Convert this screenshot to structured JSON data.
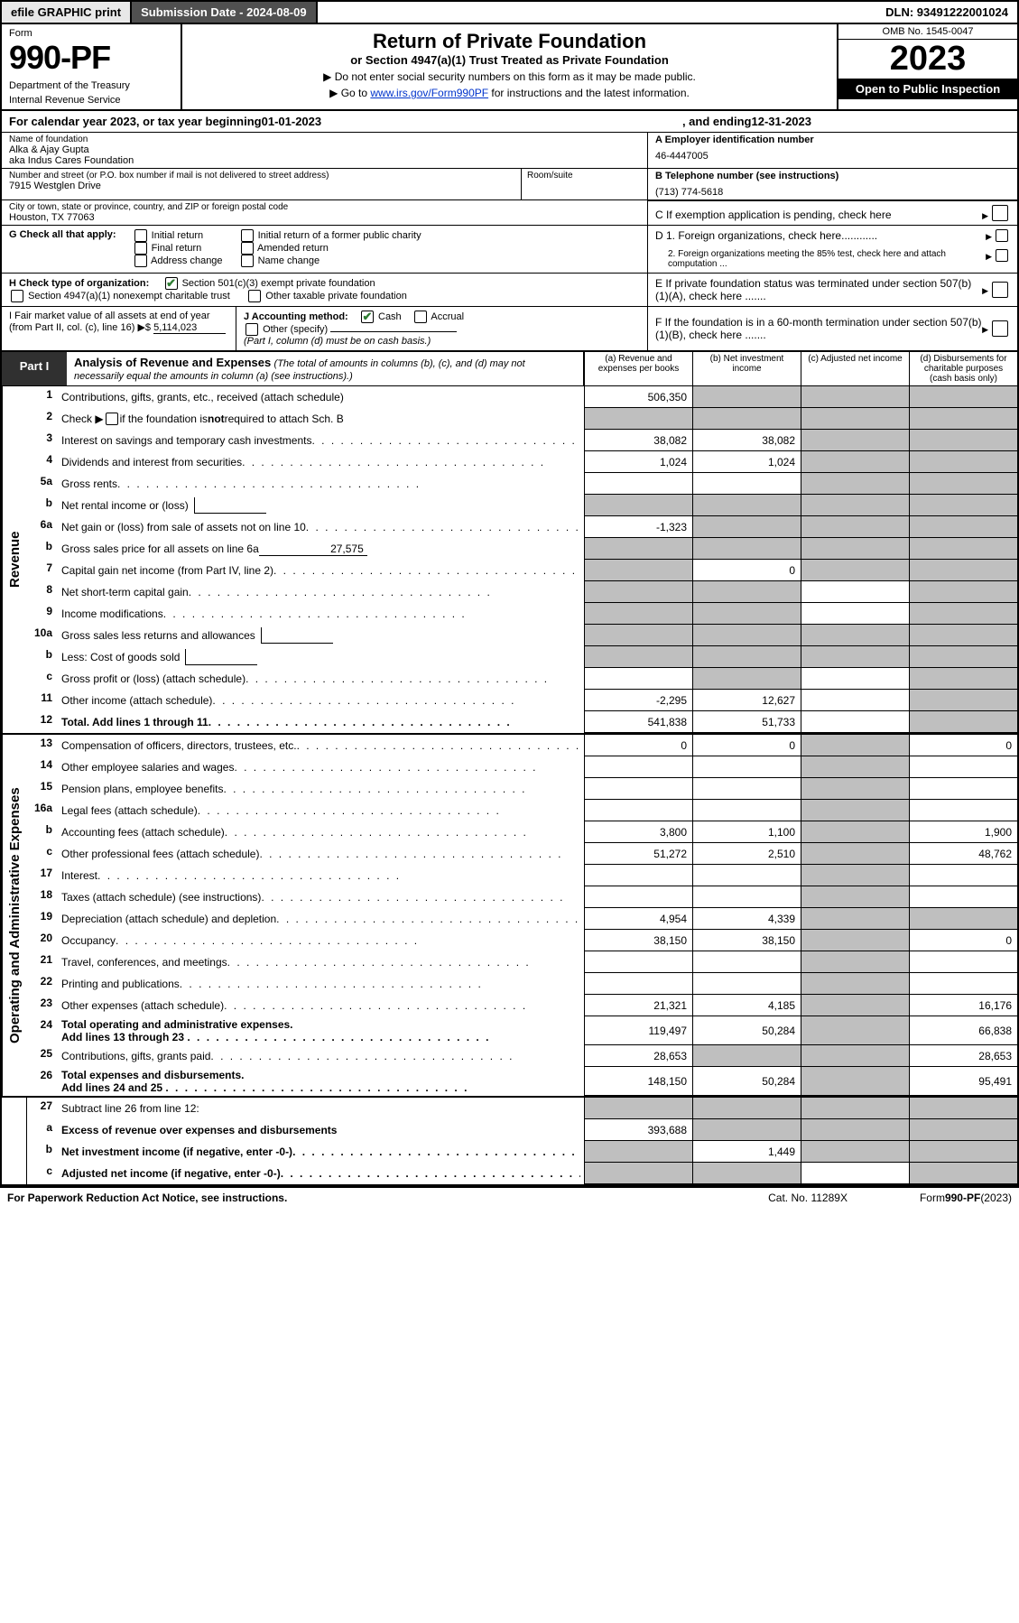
{
  "topbar": {
    "efile": "efile GRAPHIC print",
    "submission_label": "Submission Date - 2024-08-09",
    "dln": "DLN: 93491222001024"
  },
  "header": {
    "form_word": "Form",
    "form_number": "990-PF",
    "dept1": "Department of the Treasury",
    "dept2": "Internal Revenue Service",
    "title": "Return of Private Foundation",
    "subtitle": "or Section 4947(a)(1) Trust Treated as Private Foundation",
    "instr1": "▶ Do not enter social security numbers on this form as it may be made public.",
    "instr2_pre": "▶ Go to ",
    "instr2_link": "www.irs.gov/Form990PF",
    "instr2_post": " for instructions and the latest information.",
    "omb": "OMB No. 1545-0047",
    "year": "2023",
    "open": "Open to Public Inspection"
  },
  "calyear": {
    "pre": "For calendar year 2023, or tax year beginning ",
    "begin": "01-01-2023",
    "mid": ", and ending ",
    "end": "12-31-2023"
  },
  "name": {
    "label": "Name of foundation",
    "line1": "Alka & Ajay Gupta",
    "line2": "aka Indus Cares Foundation"
  },
  "ein": {
    "label": "A Employer identification number",
    "value": "46-4447005"
  },
  "addr": {
    "label": "Number and street (or P.O. box number if mail is not delivered to street address)",
    "value": "7915 Westglen Drive",
    "room_label": "Room/suite"
  },
  "phone": {
    "label": "B Telephone number (see instructions)",
    "value": "(713) 774-5618"
  },
  "city": {
    "label": "City or town, state or province, country, and ZIP or foreign postal code",
    "value": "Houston, TX  77063"
  },
  "C": "C If exemption application is pending, check here",
  "G": {
    "label": "G Check all that apply:",
    "o1": "Initial return",
    "o2": "Final return",
    "o3": "Address change",
    "o4": "Initial return of a former public charity",
    "o5": "Amended return",
    "o6": "Name change"
  },
  "D": {
    "d1": "D 1. Foreign organizations, check here............",
    "d2": "2. Foreign organizations meeting the 85% test, check here and attach computation ..."
  },
  "H": {
    "label": "H Check type of organization:",
    "o1": "Section 501(c)(3) exempt private foundation",
    "o2": "Section 4947(a)(1) nonexempt charitable trust",
    "o3": "Other taxable private foundation"
  },
  "E": "E  If private foundation status was terminated under section 507(b)(1)(A), check here .......",
  "I": {
    "label": "I Fair market value of all assets at end of year (from Part II, col. (c), line 16)",
    "value": "5,114,023",
    "arrow": "▶$"
  },
  "J": {
    "label": "J Accounting method:",
    "o1": "Cash",
    "o2": "Accrual",
    "o3": "Other (specify)",
    "note": "(Part I, column (d) must be on cash basis.)"
  },
  "F": "F  If the foundation is in a 60-month termination under section 507(b)(1)(B), check here .......",
  "part1": {
    "tab": "Part I",
    "title": "Analysis of Revenue and Expenses",
    "note": "(The total of amounts in columns (b), (c), and (d) may not necessarily equal the amounts in column (a) (see instructions).)",
    "ca": "(a)  Revenue and expenses per books",
    "cb": "(b)  Net investment income",
    "cc": "(c)  Adjusted net income",
    "cd": "(d)  Disbursements for charitable purposes (cash basis only)"
  },
  "side": {
    "rev": "Revenue",
    "exp": "Operating and Administrative Expenses"
  },
  "lines": {
    "l1": {
      "n": "1",
      "d": "Contributions, gifts, grants, etc., received (attach schedule)",
      "a": "506,350"
    },
    "l2": {
      "n": "2",
      "d_pre": "Check ▶ ",
      "d_post": " if the foundation is ",
      "d_bold": "not",
      "d_end": " required to attach Sch. B"
    },
    "l3": {
      "n": "3",
      "d": "Interest on savings and temporary cash investments",
      "a": "38,082",
      "b": "38,082"
    },
    "l4": {
      "n": "4",
      "d": "Dividends and interest from securities",
      "a": "1,024",
      "b": "1,024"
    },
    "l5a": {
      "n": "5a",
      "d": "Gross rents"
    },
    "l5b": {
      "n": "b",
      "d": "Net rental income or (loss)"
    },
    "l6a": {
      "n": "6a",
      "d": "Net gain or (loss) from sale of assets not on line 10",
      "a": "-1,323"
    },
    "l6b": {
      "n": "b",
      "d": "Gross sales price for all assets on line 6a",
      "inline": "27,575"
    },
    "l7": {
      "n": "7",
      "d": "Capital gain net income (from Part IV, line 2)",
      "b": "0"
    },
    "l8": {
      "n": "8",
      "d": "Net short-term capital gain"
    },
    "l9": {
      "n": "9",
      "d": "Income modifications"
    },
    "l10a": {
      "n": "10a",
      "d": "Gross sales less returns and allowances"
    },
    "l10b": {
      "n": "b",
      "d": "Less: Cost of goods sold"
    },
    "l10c": {
      "n": "c",
      "d": "Gross profit or (loss) (attach schedule)"
    },
    "l11": {
      "n": "11",
      "d": "Other income (attach schedule)",
      "a": "-2,295",
      "b": "12,627"
    },
    "l12": {
      "n": "12",
      "d": "Total. Add lines 1 through 11",
      "a": "541,838",
      "b": "51,733"
    },
    "l13": {
      "n": "13",
      "d": "Compensation of officers, directors, trustees, etc.",
      "a": "0",
      "b": "0",
      "dd": "0"
    },
    "l14": {
      "n": "14",
      "d": "Other employee salaries and wages"
    },
    "l15": {
      "n": "15",
      "d": "Pension plans, employee benefits"
    },
    "l16a": {
      "n": "16a",
      "d": "Legal fees (attach schedule)"
    },
    "l16b": {
      "n": "b",
      "d": "Accounting fees (attach schedule)",
      "a": "3,800",
      "b": "1,100",
      "dd": "1,900"
    },
    "l16c": {
      "n": "c",
      "d": "Other professional fees (attach schedule)",
      "a": "51,272",
      "b": "2,510",
      "dd": "48,762"
    },
    "l17": {
      "n": "17",
      "d": "Interest"
    },
    "l18": {
      "n": "18",
      "d": "Taxes (attach schedule) (see instructions)"
    },
    "l19": {
      "n": "19",
      "d": "Depreciation (attach schedule) and depletion",
      "a": "4,954",
      "b": "4,339"
    },
    "l20": {
      "n": "20",
      "d": "Occupancy",
      "a": "38,150",
      "b": "38,150",
      "dd": "0"
    },
    "l21": {
      "n": "21",
      "d": "Travel, conferences, and meetings"
    },
    "l22": {
      "n": "22",
      "d": "Printing and publications"
    },
    "l23": {
      "n": "23",
      "d": "Other expenses (attach schedule)",
      "a": "21,321",
      "b": "4,185",
      "dd": "16,176"
    },
    "l24": {
      "n": "24",
      "d": "Total operating and administrative expenses.",
      "d2": "Add lines 13 through 23",
      "a": "119,497",
      "b": "50,284",
      "dd": "66,838"
    },
    "l25": {
      "n": "25",
      "d": "Contributions, gifts, grants paid",
      "a": "28,653",
      "dd": "28,653"
    },
    "l26": {
      "n": "26",
      "d": "Total expenses and disbursements. ",
      "d2": "Add lines 24 and 25",
      "a": "148,150",
      "b": "50,284",
      "dd": "95,491"
    },
    "l27": {
      "n": "27",
      "d": "Subtract line 26 from line 12:"
    },
    "l27a": {
      "n": "a",
      "d": "Excess of revenue over expenses and disbursements",
      "a": "393,688"
    },
    "l27b": {
      "n": "b",
      "d": "Net investment income (if negative, enter -0-)",
      "b": "1,449"
    },
    "l27c": {
      "n": "c",
      "d": "Adjusted net income (if negative, enter -0-)"
    }
  },
  "footer": {
    "left": "For Paperwork Reduction Act Notice, see instructions.",
    "mid": "Cat. No. 11289X",
    "right": "Form 990-PF (2023)"
  },
  "colors": {
    "shade": "#bfbfbf",
    "parti_bg": "#303030",
    "link": "#0033cc",
    "check_green": "#2e7d32"
  }
}
